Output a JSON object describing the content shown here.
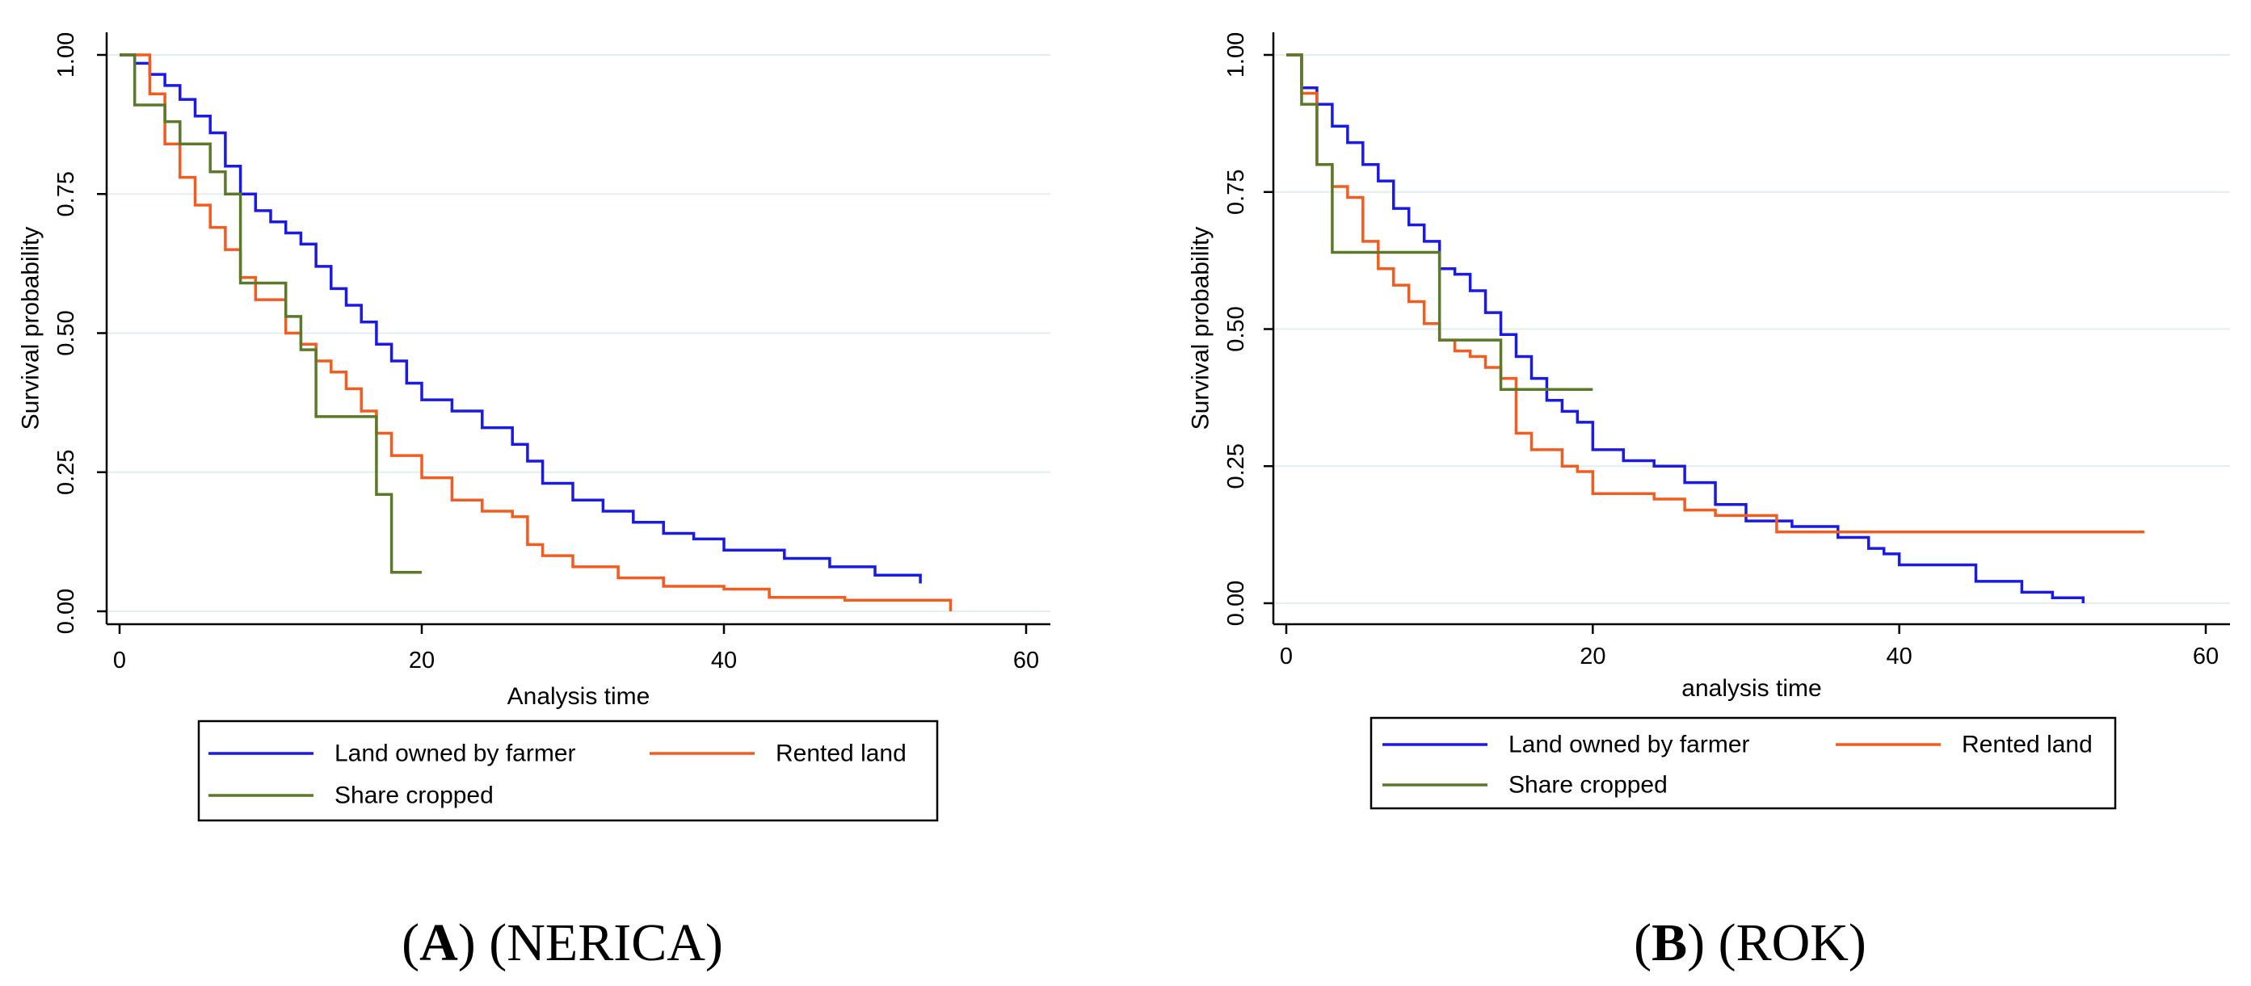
{
  "chart_data": [
    {
      "type": "line",
      "subtype": "kaplan-meier step",
      "xlabel": "Analysis time",
      "ylabel": "Survival probability",
      "xlim": [
        0,
        60
      ],
      "ylim": [
        0,
        1
      ],
      "xticks": [
        "0",
        "20",
        "40",
        "60"
      ],
      "yticks": [
        "0.00",
        "0.25",
        "0.50",
        "0.75",
        "1.00"
      ],
      "grid": true,
      "legend_position": "bottom",
      "caption_letter": "A",
      "caption_rest": ") (NERICA)",
      "series": [
        {
          "name": "Land owned by farmer",
          "color": "#1a1ae6",
          "x": [
            0,
            1,
            2,
            3,
            4,
            5,
            6,
            7,
            8,
            9,
            10,
            11,
            12,
            13,
            14,
            15,
            16,
            17,
            18,
            19,
            20,
            22,
            24,
            26,
            27,
            28,
            30,
            32,
            34,
            36,
            38,
            40,
            44,
            47,
            50,
            53
          ],
          "y": [
            1.0,
            0.985,
            0.965,
            0.945,
            0.92,
            0.89,
            0.86,
            0.8,
            0.75,
            0.72,
            0.7,
            0.68,
            0.66,
            0.62,
            0.58,
            0.55,
            0.52,
            0.48,
            0.45,
            0.41,
            0.38,
            0.36,
            0.33,
            0.3,
            0.27,
            0.23,
            0.2,
            0.18,
            0.16,
            0.14,
            0.13,
            0.11,
            0.095,
            0.08,
            0.065,
            0.05
          ]
        },
        {
          "name": "Rented land",
          "color": "#f25c1e",
          "x": [
            0,
            2,
            3,
            4,
            5,
            6,
            7,
            8,
            9,
            11,
            12,
            13,
            14,
            15,
            16,
            17,
            18,
            20,
            22,
            24,
            26,
            27,
            28,
            30,
            33,
            36,
            40,
            43,
            48,
            55
          ],
          "y": [
            1.0,
            0.93,
            0.84,
            0.78,
            0.73,
            0.69,
            0.65,
            0.6,
            0.56,
            0.5,
            0.48,
            0.45,
            0.43,
            0.4,
            0.36,
            0.32,
            0.28,
            0.24,
            0.2,
            0.18,
            0.17,
            0.12,
            0.1,
            0.08,
            0.06,
            0.045,
            0.04,
            0.025,
            0.02,
            0.0
          ]
        },
        {
          "name": "Share cropped",
          "color": "#5a7a2a",
          "x": [
            0,
            1,
            3,
            4,
            6,
            7,
            8,
            11,
            12,
            13,
            17,
            18,
            20
          ],
          "y": [
            1.0,
            0.91,
            0.88,
            0.84,
            0.79,
            0.75,
            0.59,
            0.53,
            0.47,
            0.35,
            0.21,
            0.07,
            0.07
          ]
        }
      ]
    },
    {
      "type": "line",
      "subtype": "kaplan-meier step",
      "xlabel": "analysis time",
      "ylabel": "Survival probability",
      "xlim": [
        0,
        60
      ],
      "ylim": [
        0,
        1
      ],
      "xticks": [
        "0",
        "20",
        "40",
        "60"
      ],
      "yticks": [
        "0.00",
        "0.25",
        "0.50",
        "0.75",
        "1.00"
      ],
      "grid": true,
      "legend_position": "bottom",
      "caption_letter": "B",
      "caption_rest": ") (ROK)",
      "series": [
        {
          "name": "Land owned by farmer",
          "color": "#1a1ae6",
          "x": [
            0,
            1,
            2,
            3,
            4,
            5,
            6,
            7,
            8,
            9,
            10,
            11,
            12,
            13,
            14,
            15,
            16,
            17,
            18,
            19,
            20,
            22,
            24,
            26,
            28,
            30,
            33,
            36,
            38,
            39,
            40,
            45,
            48,
            50,
            52
          ],
          "y": [
            1.0,
            0.94,
            0.91,
            0.87,
            0.84,
            0.8,
            0.77,
            0.72,
            0.69,
            0.66,
            0.61,
            0.6,
            0.57,
            0.53,
            0.49,
            0.45,
            0.41,
            0.37,
            0.35,
            0.33,
            0.28,
            0.26,
            0.25,
            0.22,
            0.18,
            0.15,
            0.14,
            0.12,
            0.1,
            0.09,
            0.07,
            0.04,
            0.02,
            0.01,
            0.0
          ]
        },
        {
          "name": "Rented land",
          "color": "#f25c1e",
          "x": [
            0,
            1,
            2,
            3,
            4,
            5,
            6,
            7,
            8,
            9,
            10,
            11,
            12,
            13,
            14,
            15,
            16,
            18,
            19,
            20,
            24,
            26,
            28,
            32,
            56
          ],
          "y": [
            1.0,
            0.93,
            0.8,
            0.76,
            0.74,
            0.66,
            0.61,
            0.58,
            0.55,
            0.51,
            0.48,
            0.46,
            0.45,
            0.43,
            0.41,
            0.31,
            0.28,
            0.25,
            0.24,
            0.2,
            0.19,
            0.17,
            0.16,
            0.13,
            0.13
          ]
        },
        {
          "name": "Share cropped",
          "color": "#5a7a2a",
          "x": [
            0,
            1,
            2,
            3,
            10,
            14,
            20
          ],
          "y": [
            1.0,
            0.91,
            0.8,
            0.64,
            0.48,
            0.39,
            0.39
          ]
        }
      ]
    }
  ]
}
